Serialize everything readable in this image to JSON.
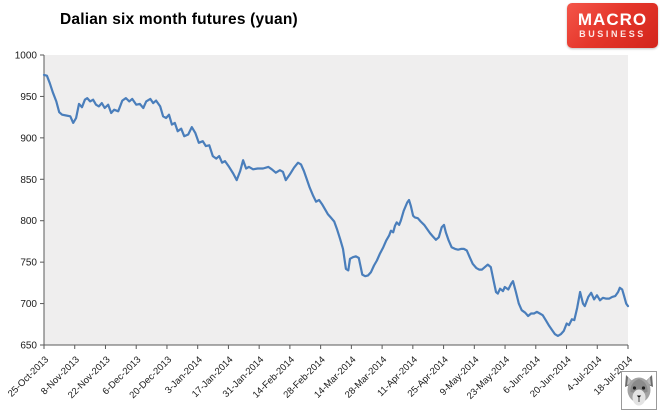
{
  "window": {
    "title": "Dalian six month futures (yuan)"
  },
  "logo": {
    "line1": "MACRO",
    "line2": "BUSINESS",
    "bg_color": "#e5372b"
  },
  "icons": {
    "footer_icon": "wolf-face"
  },
  "colors": {
    "line": "#4a7ebb",
    "plot_bg": "#efeeee",
    "axis": "#595959",
    "tick_text": "#1a1a1a"
  },
  "chart_data": {
    "type": "line",
    "title": "Dalian six month futures (yuan)",
    "xlabel": "",
    "ylabel": "",
    "ylim": [
      650,
      1000
    ],
    "y_ticks": [
      1000,
      950,
      900,
      850,
      800,
      750,
      700,
      650
    ],
    "grid": false,
    "legend": false,
    "x_tick_labels": [
      "25-Oct-2013",
      "8-Nov-2013",
      "22-Nov-2013",
      "6-Dec-2013",
      "20-Dec-2013",
      "3-Jan-2014",
      "17-Jan-2014",
      "31-Jan-2014",
      "14-Feb-2014",
      "28-Feb-2014",
      "14-Mar-2014",
      "28-Mar-2014",
      "11-Apr-2014",
      "25-Apr-2014",
      "9-May-2014",
      "23-May-2014",
      "6-Jun-2014",
      "20-Jun-2014",
      "4-Jul-2014",
      "18-Jul-2014"
    ],
    "x_unit": "fraction of time axis from 25-Oct-2013 (0.0) to 18-Jul-2014 (1.0)",
    "points": [
      [
        0.0,
        976
      ],
      [
        0.005,
        975
      ],
      [
        0.01,
        966
      ],
      [
        0.015,
        955
      ],
      [
        0.021,
        944
      ],
      [
        0.026,
        931
      ],
      [
        0.031,
        928
      ],
      [
        0.038,
        927
      ],
      [
        0.045,
        926
      ],
      [
        0.05,
        918
      ],
      [
        0.055,
        924
      ],
      [
        0.06,
        941
      ],
      [
        0.065,
        937
      ],
      [
        0.07,
        946
      ],
      [
        0.074,
        948
      ],
      [
        0.079,
        944
      ],
      [
        0.084,
        946
      ],
      [
        0.089,
        940
      ],
      [
        0.094,
        938
      ],
      [
        0.099,
        942
      ],
      [
        0.104,
        936
      ],
      [
        0.11,
        940
      ],
      [
        0.115,
        930
      ],
      [
        0.12,
        934
      ],
      [
        0.127,
        932
      ],
      [
        0.134,
        945
      ],
      [
        0.14,
        948
      ],
      [
        0.146,
        944
      ],
      [
        0.151,
        947
      ],
      [
        0.158,
        940
      ],
      [
        0.164,
        941
      ],
      [
        0.17,
        936
      ],
      [
        0.175,
        944
      ],
      [
        0.182,
        947
      ],
      [
        0.187,
        942
      ],
      [
        0.192,
        945
      ],
      [
        0.199,
        938
      ],
      [
        0.204,
        926
      ],
      [
        0.209,
        924
      ],
      [
        0.214,
        928
      ],
      [
        0.219,
        916
      ],
      [
        0.224,
        918
      ],
      [
        0.229,
        908
      ],
      [
        0.235,
        911
      ],
      [
        0.24,
        902
      ],
      [
        0.247,
        904
      ],
      [
        0.253,
        913
      ],
      [
        0.259,
        906
      ],
      [
        0.265,
        894
      ],
      [
        0.272,
        896
      ],
      [
        0.277,
        890
      ],
      [
        0.283,
        891
      ],
      [
        0.289,
        878
      ],
      [
        0.295,
        875
      ],
      [
        0.3,
        878
      ],
      [
        0.305,
        870
      ],
      [
        0.31,
        872
      ],
      [
        0.317,
        865
      ],
      [
        0.324,
        857
      ],
      [
        0.33,
        849
      ],
      [
        0.336,
        860
      ],
      [
        0.341,
        873
      ],
      [
        0.346,
        863
      ],
      [
        0.351,
        865
      ],
      [
        0.358,
        862
      ],
      [
        0.366,
        863
      ],
      [
        0.375,
        863
      ],
      [
        0.384,
        865
      ],
      [
        0.39,
        862
      ],
      [
        0.397,
        858
      ],
      [
        0.404,
        861
      ],
      [
        0.409,
        859
      ],
      [
        0.414,
        849
      ],
      [
        0.421,
        856
      ],
      [
        0.428,
        864
      ],
      [
        0.435,
        870
      ],
      [
        0.44,
        868
      ],
      [
        0.445,
        860
      ],
      [
        0.45,
        850
      ],
      [
        0.455,
        840
      ],
      [
        0.461,
        830
      ],
      [
        0.466,
        823
      ],
      [
        0.471,
        825
      ],
      [
        0.476,
        820
      ],
      [
        0.481,
        814
      ],
      [
        0.486,
        808
      ],
      [
        0.491,
        804
      ],
      [
        0.497,
        799
      ],
      [
        0.502,
        789
      ],
      [
        0.507,
        778
      ],
      [
        0.512,
        766
      ],
      [
        0.517,
        742
      ],
      [
        0.521,
        740
      ],
      [
        0.524,
        754
      ],
      [
        0.529,
        756
      ],
      [
        0.534,
        757
      ],
      [
        0.539,
        755
      ],
      [
        0.545,
        735
      ],
      [
        0.55,
        733
      ],
      [
        0.555,
        734
      ],
      [
        0.56,
        738
      ],
      [
        0.565,
        746
      ],
      [
        0.57,
        752
      ],
      [
        0.575,
        760
      ],
      [
        0.581,
        768
      ],
      [
        0.586,
        776
      ],
      [
        0.591,
        782
      ],
      [
        0.594,
        788
      ],
      [
        0.598,
        786
      ],
      [
        0.601,
        794
      ],
      [
        0.604,
        798
      ],
      [
        0.608,
        795
      ],
      [
        0.611,
        800
      ],
      [
        0.616,
        812
      ],
      [
        0.622,
        822
      ],
      [
        0.625,
        825
      ],
      [
        0.628,
        818
      ],
      [
        0.632,
        806
      ],
      [
        0.635,
        804
      ],
      [
        0.64,
        803
      ],
      [
        0.645,
        799
      ],
      [
        0.651,
        795
      ],
      [
        0.656,
        790
      ],
      [
        0.661,
        785
      ],
      [
        0.666,
        781
      ],
      [
        0.671,
        777
      ],
      [
        0.676,
        780
      ],
      [
        0.681,
        792
      ],
      [
        0.685,
        795
      ],
      [
        0.688,
        786
      ],
      [
        0.693,
        776
      ],
      [
        0.698,
        768
      ],
      [
        0.704,
        766
      ],
      [
        0.709,
        765
      ],
      [
        0.714,
        766
      ],
      [
        0.719,
        766
      ],
      [
        0.724,
        764
      ],
      [
        0.729,
        756
      ],
      [
        0.734,
        748
      ],
      [
        0.74,
        743
      ],
      [
        0.745,
        741
      ],
      [
        0.75,
        741
      ],
      [
        0.755,
        744
      ],
      [
        0.76,
        747
      ],
      [
        0.765,
        744
      ],
      [
        0.77,
        727
      ],
      [
        0.774,
        714
      ],
      [
        0.777,
        712
      ],
      [
        0.781,
        718
      ],
      [
        0.786,
        715
      ],
      [
        0.789,
        720
      ],
      [
        0.795,
        717
      ],
      [
        0.8,
        724
      ],
      [
        0.803,
        727
      ],
      [
        0.808,
        714
      ],
      [
        0.813,
        700
      ],
      [
        0.818,
        692
      ],
      [
        0.824,
        689
      ],
      [
        0.829,
        685
      ],
      [
        0.834,
        688
      ],
      [
        0.839,
        688
      ],
      [
        0.844,
        690
      ],
      [
        0.849,
        688
      ],
      [
        0.854,
        686
      ],
      [
        0.859,
        680
      ],
      [
        0.865,
        673
      ],
      [
        0.87,
        668
      ],
      [
        0.875,
        663
      ],
      [
        0.88,
        661
      ],
      [
        0.885,
        663
      ],
      [
        0.89,
        667
      ],
      [
        0.895,
        676
      ],
      [
        0.899,
        674
      ],
      [
        0.904,
        681
      ],
      [
        0.908,
        680
      ],
      [
        0.913,
        695
      ],
      [
        0.918,
        714
      ],
      [
        0.923,
        700
      ],
      [
        0.926,
        697
      ],
      [
        0.932,
        708
      ],
      [
        0.937,
        713
      ],
      [
        0.942,
        705
      ],
      [
        0.947,
        710
      ],
      [
        0.952,
        704
      ],
      [
        0.957,
        707
      ],
      [
        0.962,
        706
      ],
      [
        0.968,
        706
      ],
      [
        0.973,
        708
      ],
      [
        0.978,
        709
      ],
      [
        0.983,
        714
      ],
      [
        0.986,
        719
      ],
      [
        0.99,
        717
      ],
      [
        0.993,
        710
      ],
      [
        0.997,
        700
      ],
      [
        1.0,
        697
      ]
    ]
  }
}
